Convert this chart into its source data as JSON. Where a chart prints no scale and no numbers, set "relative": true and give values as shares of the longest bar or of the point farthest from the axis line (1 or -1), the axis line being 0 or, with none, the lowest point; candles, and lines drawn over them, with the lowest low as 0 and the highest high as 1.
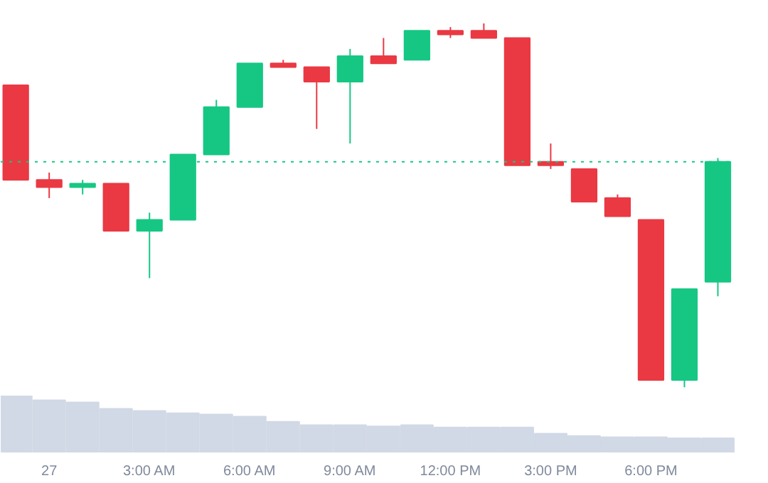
{
  "chart_data": [
    {
      "type": "candlestick",
      "relative": true,
      "categories": [
        null,
        null,
        null,
        null,
        null,
        null,
        null,
        null,
        null,
        null,
        null,
        null,
        null,
        null,
        null,
        null,
        null,
        null,
        null,
        null,
        null,
        null
      ],
      "ohlc": [
        [
          0.83,
          0.83,
          0.57,
          0.57
        ],
        [
          0.57,
          0.59,
          0.52,
          0.55
        ],
        [
          0.55,
          0.57,
          0.53,
          0.56
        ],
        [
          0.56,
          0.56,
          0.43,
          0.43
        ],
        [
          0.43,
          0.48,
          0.3,
          0.46
        ],
        [
          0.46,
          0.64,
          0.46,
          0.64
        ],
        [
          0.64,
          0.79,
          0.64,
          0.77
        ],
        [
          0.77,
          0.89,
          0.77,
          0.89
        ],
        [
          0.89,
          0.9,
          0.88,
          0.88
        ],
        [
          0.88,
          0.88,
          0.71,
          0.84
        ],
        [
          0.84,
          0.93,
          0.67,
          0.91
        ],
        [
          0.91,
          0.96,
          0.89,
          0.89
        ],
        [
          0.9,
          0.98,
          0.9,
          0.98
        ],
        [
          0.98,
          0.99,
          0.96,
          0.97
        ],
        [
          0.98,
          1.0,
          0.96,
          0.96
        ],
        [
          0.96,
          0.96,
          0.61,
          0.61
        ],
        [
          0.62,
          0.67,
          0.6,
          0.61
        ],
        [
          0.6,
          0.6,
          0.51,
          0.51
        ],
        [
          0.52,
          0.53,
          0.47,
          0.47
        ],
        [
          0.46,
          0.46,
          0.02,
          0.02
        ],
        [
          0.02,
          0.27,
          0.0,
          0.27
        ],
        [
          0.29,
          0.63,
          0.25,
          0.62
        ]
      ],
      "colors": [
        "#ea3943",
        "#ea3943",
        "#16c784",
        "#ea3943",
        "#16c784",
        "#16c784",
        "#16c784",
        "#16c784",
        "#ea3943",
        "#ea3943",
        "#16c784",
        "#ea3943",
        "#16c784",
        "#ea3943",
        "#ea3943",
        "#ea3943",
        "#ea3943",
        "#ea3943",
        "#ea3943",
        "#ea3943",
        "#16c784",
        "#16c784"
      ],
      "ref_lines": [
        {
          "axis": "y",
          "value": 0.62,
          "color": "#16c784",
          "line_style": "dotted"
        }
      ]
    },
    {
      "type": "bar",
      "relative": true,
      "tick_labels": "x",
      "categories": [
        null,
        "27",
        null,
        null,
        "3:00 AM",
        null,
        null,
        "6:00 AM",
        null,
        null,
        "9:00 AM",
        null,
        null,
        "12:00 PM",
        null,
        null,
        "3:00 PM",
        null,
        null,
        "6:00 PM",
        null,
        null
      ],
      "series": [
        {
          "color": "#d1d9e6",
          "values": [
            1,
            0.92,
            0.88,
            0.77,
            0.73,
            0.69,
            0.67,
            0.63,
            0.54,
            0.48,
            0.48,
            0.46,
            0.48,
            0.44,
            0.44,
            0.44,
            0.33,
            0.29,
            0.27,
            0.27,
            0.25,
            0.25
          ]
        }
      ]
    }
  ]
}
